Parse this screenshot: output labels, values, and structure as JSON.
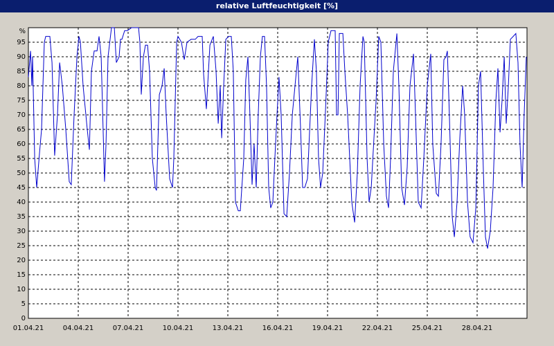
{
  "chart_data": {
    "type": "line",
    "title": "relative Luftfeuchtigkeit [%]",
    "color": "#0000cc",
    "grid": true,
    "xlim": [
      0,
      30
    ],
    "ylim": [
      0,
      100
    ],
    "xticks": [
      {
        "value": 0,
        "label": "01.04.21"
      },
      {
        "value": 3,
        "label": "04.04.21"
      },
      {
        "value": 6,
        "label": "07.04.21"
      },
      {
        "value": 9,
        "label": "10.04.21"
      },
      {
        "value": 12,
        "label": "13.04.21"
      },
      {
        "value": 15,
        "label": "16.04.21"
      },
      {
        "value": 18,
        "label": "19.04.21"
      },
      {
        "value": 21,
        "label": "22.04.21"
      },
      {
        "value": 24,
        "label": "25.04.21"
      },
      {
        "value": 27,
        "label": "28.04.21"
      }
    ],
    "yticks": [
      0,
      5,
      10,
      15,
      20,
      25,
      30,
      35,
      40,
      45,
      50,
      55,
      60,
      65,
      70,
      75,
      80,
      85,
      90,
      95,
      {
        "value": 100,
        "label": "%"
      }
    ],
    "x": [
      0,
      0.13,
      0.21,
      0.25,
      0.38,
      0.5,
      0.67,
      0.79,
      0.96,
      1.04,
      1.29,
      1.42,
      1.58,
      1.75,
      1.88,
      2.04,
      2.25,
      2.46,
      2.58,
      2.75,
      2.92,
      3.04,
      3.13,
      3.29,
      3.54,
      3.67,
      3.79,
      3.96,
      4.13,
      4.25,
      4.38,
      4.58,
      4.67,
      4.79,
      5,
      5.17,
      5.29,
      5.46,
      5.54,
      5.63,
      5.79,
      5.96,
      6.21,
      6.63,
      6.71,
      6.79,
      6.92,
      7.04,
      7.17,
      7.29,
      7.46,
      7.63,
      7.71,
      7.88,
      8.04,
      8.17,
      8.29,
      8.5,
      8.67,
      8.75,
      8.92,
      9,
      9.21,
      9.38,
      9.54,
      9.79,
      10.04,
      10.21,
      10.46,
      10.54,
      10.71,
      10.92,
      11.13,
      11.29,
      11.42,
      11.54,
      11.63,
      11.75,
      11.88,
      12.04,
      12.21,
      12.33,
      12.46,
      12.63,
      12.75,
      12.96,
      13.08,
      13.21,
      13.33,
      13.46,
      13.58,
      13.71,
      13.83,
      13.96,
      14.08,
      14.21,
      14.33,
      14.46,
      14.58,
      14.71,
      14.83,
      14.96,
      15.08,
      15.21,
      15.38,
      15.54,
      15.71,
      15.88,
      16.04,
      16.21,
      16.38,
      16.5,
      16.63,
      16.79,
      17.04,
      17.21,
      17.33,
      17.46,
      17.58,
      17.71,
      17.88,
      18.04,
      18.21,
      18.46,
      18.54,
      18.63,
      18.71,
      18.92,
      19.04,
      19.21,
      19.46,
      19.63,
      19.79,
      19.96,
      20.13,
      20.21,
      20.38,
      20.5,
      20.63,
      20.79,
      20.92,
      21.08,
      21.21,
      21.38,
      21.54,
      21.67,
      21.79,
      21.96,
      22.17,
      22.29,
      22.46,
      22.63,
      22.79,
      22.96,
      23.17,
      23.29,
      23.46,
      23.63,
      23.79,
      24,
      24.21,
      24.33,
      24.54,
      24.67,
      24.83,
      25,
      25.13,
      25.21,
      25.33,
      25.5,
      25.63,
      25.79,
      25.96,
      26.13,
      26.25,
      26.42,
      26.58,
      26.75,
      26.92,
      27.08,
      27.21,
      27.38,
      27.5,
      27.63,
      27.79,
      27.96,
      28.13,
      28.25,
      28.38,
      28.5,
      28.63,
      28.75,
      28.88,
      29,
      29.17,
      29.33,
      29.46,
      29.58,
      29.71,
      29.83,
      29.96
    ],
    "values": [
      83,
      92,
      80,
      90,
      55,
      45,
      57,
      65,
      95,
      97,
      97,
      88,
      56,
      70,
      88,
      80,
      65,
      47,
      46,
      70,
      90,
      97,
      95,
      80,
      65,
      58,
      85,
      92,
      92,
      97,
      90,
      47,
      60,
      90,
      100,
      100,
      88,
      90,
      96,
      96,
      99,
      99,
      100,
      100,
      95,
      77,
      90,
      94,
      94,
      85,
      55,
      45,
      44,
      77,
      80,
      86,
      70,
      48,
      45,
      55,
      95,
      97,
      95,
      89,
      95,
      96,
      96,
      97,
      97,
      84,
      72,
      94,
      97,
      85,
      67,
      80,
      62,
      80,
      96,
      97,
      97,
      85,
      40,
      37,
      37,
      55,
      82,
      90,
      70,
      46,
      60,
      45,
      70,
      90,
      97,
      97,
      80,
      45,
      38,
      40,
      55,
      70,
      83,
      70,
      36,
      35,
      50,
      70,
      80,
      90,
      65,
      45,
      45,
      48,
      80,
      96,
      85,
      55,
      45,
      50,
      72,
      95,
      99,
      99,
      70,
      70,
      98,
      98,
      85,
      70,
      40,
      33,
      50,
      80,
      97,
      95,
      55,
      40,
      45,
      62,
      75,
      97,
      95,
      60,
      42,
      38,
      55,
      85,
      98,
      80,
      45,
      39,
      52,
      80,
      91,
      70,
      40,
      38,
      55,
      80,
      91,
      60,
      43,
      42,
      60,
      89,
      90,
      92,
      70,
      35,
      28,
      40,
      62,
      80,
      70,
      40,
      28,
      26,
      38,
      80,
      85,
      50,
      28,
      24,
      30,
      45,
      75,
      86,
      64,
      75,
      90,
      67,
      80,
      96,
      97,
      98,
      88,
      60,
      45,
      70,
      90
    ]
  }
}
